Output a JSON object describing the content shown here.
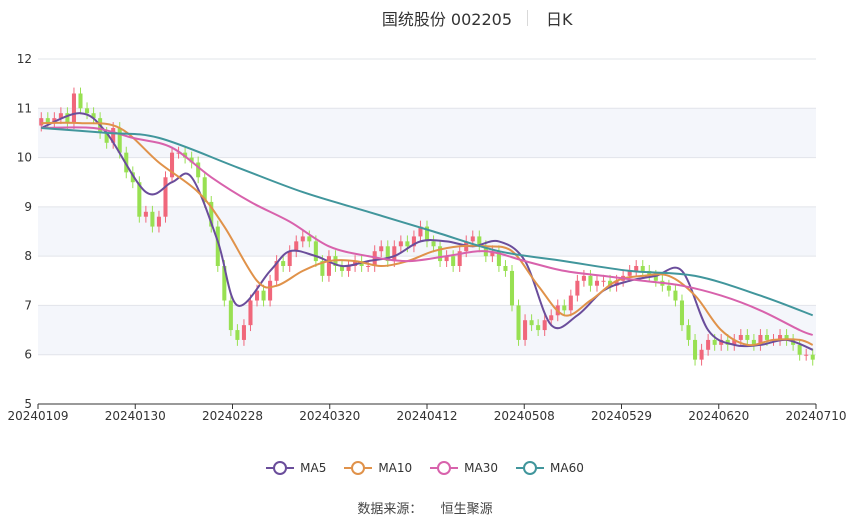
{
  "header": {
    "stock": "国统股份 002205",
    "period": "日K"
  },
  "source": {
    "label": "数据来源：",
    "name": "恒生聚源"
  },
  "colors": {
    "up": "#f0677b",
    "down": "#98e052",
    "ma5": "#6a4d9b",
    "ma10": "#e0924a",
    "ma30": "#d862ac",
    "ma60": "#41969c",
    "band": "#f4f6fb",
    "grid": "#e2e4ea",
    "axis": "#333333"
  },
  "legend": [
    {
      "name": "MA5",
      "color": "#6a4d9b"
    },
    {
      "name": "MA10",
      "color": "#e0924a"
    },
    {
      "name": "MA30",
      "color": "#d862ac"
    },
    {
      "name": "MA60",
      "color": "#41969c"
    }
  ],
  "chart_data": {
    "type": "candlestick",
    "x_tick_labels": [
      "20240109",
      "20240130",
      "20240228",
      "20240320",
      "20240412",
      "20240508",
      "20240529",
      "20240620",
      "20240710"
    ],
    "y_ticks": [
      5,
      6,
      7,
      8,
      9,
      10,
      11,
      12
    ],
    "ylim": [
      5,
      12
    ],
    "grid": true,
    "legend_position": "bottom",
    "bar_count": 119,
    "candles_close": [
      10.8,
      10.7,
      10.8,
      10.9,
      10.7,
      11.3,
      11.0,
      10.9,
      10.8,
      10.5,
      10.3,
      10.6,
      10.1,
      9.7,
      9.5,
      8.8,
      8.9,
      8.6,
      8.8,
      9.6,
      10.1,
      10.1,
      10.0,
      9.9,
      9.6,
      9.1,
      8.6,
      7.8,
      7.1,
      6.5,
      6.3,
      6.6,
      7.1,
      7.3,
      7.1,
      7.5,
      7.9,
      7.8,
      8.1,
      8.3,
      8.4,
      8.3,
      7.9,
      7.6,
      8.0,
      7.8,
      7.7,
      7.8,
      7.9,
      7.8,
      7.8,
      8.1,
      8.2,
      7.9,
      8.2,
      8.3,
      8.2,
      8.4,
      8.6,
      8.3,
      8.2,
      7.9,
      8.0,
      7.8,
      8.1,
      8.3,
      8.4,
      8.2,
      8.0,
      8.1,
      7.8,
      7.7,
      7.0,
      6.3,
      6.7,
      6.6,
      6.5,
      6.7,
      6.8,
      7.0,
      6.9,
      7.2,
      7.5,
      7.6,
      7.4,
      7.5,
      7.5,
      7.4,
      7.5,
      7.6,
      7.7,
      7.8,
      7.7,
      7.6,
      7.5,
      7.4,
      7.3,
      7.1,
      6.6,
      6.3,
      5.9,
      6.1,
      6.3,
      6.2,
      6.3,
      6.2,
      6.3,
      6.4,
      6.3,
      6.2,
      6.4,
      6.3,
      6.3,
      6.4,
      6.3,
      6.2,
      6.0,
      6.0,
      5.9
    ],
    "series": [
      {
        "name": "MA5",
        "x": [
          0,
          6,
          10,
          16,
          20,
          23,
          27,
          30,
          35,
          38,
          42,
          46,
          50,
          54,
          58,
          62,
          66,
          70,
          74,
          78,
          82,
          86,
          90,
          94,
          98,
          102,
          106,
          110,
          114,
          118
        ],
        "values": [
          10.6,
          10.9,
          10.5,
          9.3,
          9.5,
          9.6,
          8.3,
          7.0,
          7.7,
          8.1,
          8.0,
          7.8,
          7.9,
          8.0,
          8.3,
          8.3,
          8.2,
          8.3,
          7.9,
          6.6,
          6.8,
          7.3,
          7.5,
          7.6,
          7.7,
          6.5,
          6.2,
          6.2,
          6.3,
          6.1
        ]
      },
      {
        "name": "MA10",
        "x": [
          0,
          6,
          12,
          18,
          24,
          28,
          33,
          36,
          40,
          44,
          48,
          52,
          56,
          60,
          64,
          68,
          72,
          76,
          80,
          84,
          88,
          92,
          96,
          100,
          104,
          108,
          112,
          116,
          118
        ],
        "values": [
          10.7,
          10.7,
          10.6,
          9.9,
          9.3,
          8.6,
          7.5,
          7.4,
          7.7,
          7.9,
          7.9,
          7.8,
          7.9,
          8.1,
          8.2,
          8.2,
          8.1,
          7.4,
          6.8,
          7.1,
          7.5,
          7.6,
          7.6,
          7.2,
          6.5,
          6.2,
          6.3,
          6.3,
          6.2
        ]
      },
      {
        "name": "MA30",
        "x": [
          0,
          8,
          14,
          20,
          26,
          32,
          38,
          44,
          50,
          56,
          62,
          68,
          74,
          80,
          86,
          92,
          98,
          104,
          110,
          116,
          118
        ],
        "values": [
          10.6,
          10.6,
          10.4,
          10.2,
          9.6,
          9.1,
          8.7,
          8.2,
          8.0,
          7.9,
          8.0,
          8.1,
          7.9,
          7.7,
          7.6,
          7.5,
          7.4,
          7.2,
          6.9,
          6.5,
          6.4
        ]
      },
      {
        "name": "MA60",
        "x": [
          0,
          10,
          18,
          30,
          40,
          50,
          60,
          70,
          80,
          90,
          100,
          110,
          118
        ],
        "values": [
          10.6,
          10.5,
          10.4,
          9.8,
          9.3,
          8.9,
          8.5,
          8.1,
          7.9,
          7.7,
          7.6,
          7.2,
          6.8
        ]
      }
    ]
  }
}
